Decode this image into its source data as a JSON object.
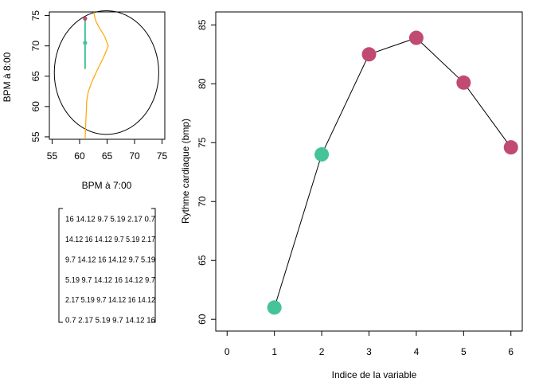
{
  "chart_data": [
    {
      "type": "scatter",
      "xlabel": "BPM à 7:00",
      "ylabel": "BPM à 8:00",
      "xlim": [
        54.5,
        75.5
      ],
      "ylim": [
        54.6,
        75.6
      ],
      "x_ticks": [
        "55",
        "60",
        "65",
        "70",
        "75"
      ],
      "y_ticks": [
        "55",
        "60",
        "65",
        "70",
        "75"
      ],
      "points": [
        {
          "x": 61,
          "y": 74.5,
          "color": "#C04A73"
        },
        {
          "x": 61,
          "y": 70.5,
          "color": "#45C39A"
        }
      ],
      "interval_segment": {
        "x": 61,
        "y_from": 66.2,
        "y_to": 74.7,
        "color": "#45C39A"
      },
      "ellipse": {
        "cx": 64.9,
        "cy": 65.6,
        "rx": 9.5,
        "ry": 10.2,
        "color": "#000000"
      },
      "density_curve": {
        "color": "#FFA500",
        "points": [
          [
            61,
            54.6
          ],
          [
            61.1,
            57
          ],
          [
            61.2,
            59
          ],
          [
            61.3,
            61
          ],
          [
            61.6,
            62.5
          ],
          [
            62.2,
            64
          ],
          [
            63.2,
            66
          ],
          [
            64.3,
            68
          ],
          [
            65,
            69.5
          ],
          [
            65.2,
            70
          ],
          [
            64.6,
            71.5
          ],
          [
            63.6,
            73
          ],
          [
            63.0,
            74
          ],
          [
            62.7,
            75
          ],
          [
            62.6,
            75.6
          ]
        ]
      }
    },
    {
      "type": "table",
      "rows": [
        [
          "16",
          "14.12",
          "9.7",
          "5.19",
          "2.17",
          "0.7"
        ],
        [
          "14.12",
          "16",
          "14.12",
          "9.7",
          "5.19",
          "2.17"
        ],
        [
          "9.7",
          "14.12",
          "16",
          "14.12",
          "9.7",
          "5.19"
        ],
        [
          "5.19",
          "9.7",
          "14.12",
          "16",
          "14.12",
          "9.7"
        ],
        [
          "2.17",
          "5.19",
          "9.7",
          "14.12",
          "16",
          "14.12"
        ],
        [
          "0.7",
          "2.17",
          "5.19",
          "9.7",
          "14.12",
          "16"
        ]
      ]
    },
    {
      "type": "line",
      "xlabel": "Indice de la variable",
      "ylabel": "Rythme cardiaque (bmp)",
      "xlim": [
        -0.24,
        6.24
      ],
      "ylim": [
        59.0,
        86.1
      ],
      "x_ticks": [
        "0",
        "1",
        "2",
        "3",
        "4",
        "5",
        "6"
      ],
      "y_ticks": [
        "60",
        "65",
        "70",
        "75",
        "80",
        "85"
      ],
      "x": [
        1,
        2,
        3,
        4,
        5,
        6
      ],
      "y": [
        61.0,
        74.0,
        82.5,
        83.9,
        80.1,
        74.6
      ],
      "point_colors": [
        "#45C39A",
        "#45C39A",
        "#C04A73",
        "#C04A73",
        "#C04A73",
        "#C04A73"
      ],
      "line_color": "#000000"
    }
  ]
}
